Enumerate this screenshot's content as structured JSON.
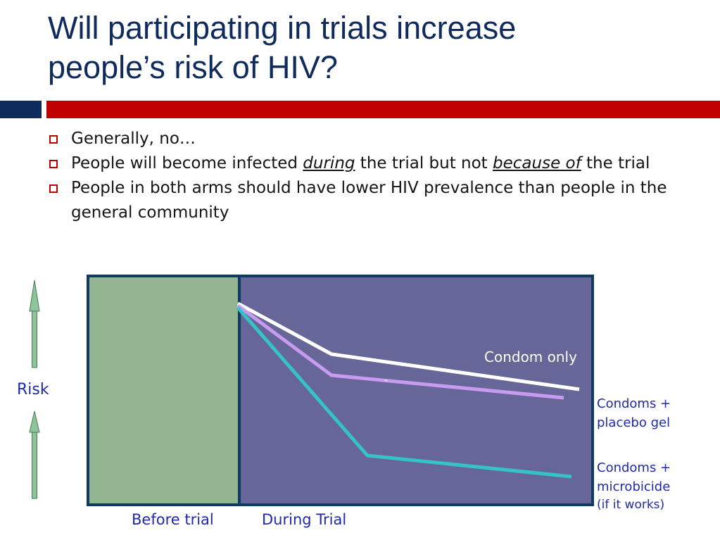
{
  "slide": {
    "title_line1": "Will participating in trials increase",
    "title_line2": "people’s risk of HIV?"
  },
  "bullets": [
    {
      "text": "Generally, no…"
    },
    {
      "pre": "People will become infected ",
      "em1": "during",
      "mid": " the trial but not ",
      "em2": "because of",
      "post": " the trial"
    },
    {
      "text": "People in both arms should have lower HIV prevalence than people in the general community"
    }
  ],
  "diagram": {
    "risk_label": "Risk",
    "before_label": "Before trial",
    "during_label": "During Trial",
    "tick_mark": "`",
    "colors": {
      "before_panel": "#94b592",
      "during_panel": "#676698",
      "frame": "#0f3a62",
      "label_text": "#1e2aa8",
      "arrow": "#8fc49a",
      "condom_only": "#ffffff",
      "placebo": "#c89bf0",
      "microbicide": "#35c3c5"
    },
    "series": [
      {
        "name": "Condom only"
      },
      {
        "name_line1": "Condoms +",
        "name_line2": "placebo gel"
      },
      {
        "name_line1": "Condoms +",
        "name_line2": "microbicide",
        "name_line3": "(if it works)"
      }
    ]
  }
}
